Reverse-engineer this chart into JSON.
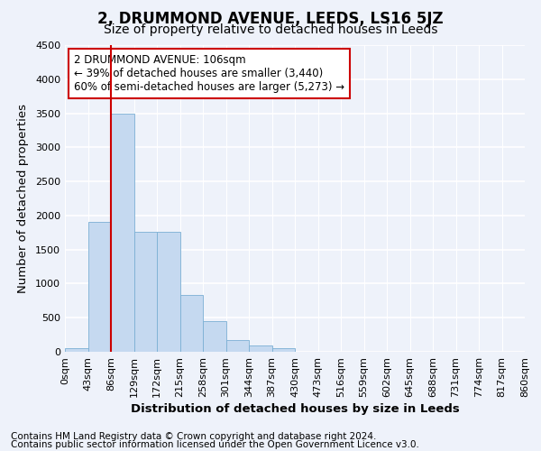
{
  "title": "2, DRUMMOND AVENUE, LEEDS, LS16 5JZ",
  "subtitle": "Size of property relative to detached houses in Leeds",
  "xlabel": "Distribution of detached houses by size in Leeds",
  "ylabel": "Number of detached properties",
  "bar_color": "#c5d9f0",
  "bar_edge_color": "#7bafd4",
  "vline_color": "#cc0000",
  "vline_x": 2,
  "annotation_text": "2 DRUMMOND AVENUE: 106sqm\n← 39% of detached houses are smaller (3,440)\n60% of semi-detached houses are larger (5,273) →",
  "annotation_box_color": "#cc0000",
  "footnote1": "Contains HM Land Registry data © Crown copyright and database right 2024.",
  "footnote2": "Contains public sector information licensed under the Open Government Licence v3.0.",
  "bar_values": [
    50,
    1900,
    3500,
    1760,
    1760,
    840,
    450,
    170,
    90,
    55,
    0,
    0,
    0,
    0,
    0,
    0,
    0,
    0,
    0,
    0
  ],
  "tick_labels": [
    "0sqm",
    "43sqm",
    "86sqm",
    "129sqm",
    "172sqm",
    "215sqm",
    "258sqm",
    "301sqm",
    "344sqm",
    "387sqm",
    "430sqm",
    "473sqm",
    "516sqm",
    "559sqm",
    "602sqm",
    "645sqm",
    "688sqm",
    "731sqm",
    "774sqm",
    "817sqm",
    "860sqm"
  ],
  "ylim": [
    0,
    4500
  ],
  "yticks": [
    0,
    500,
    1000,
    1500,
    2000,
    2500,
    3000,
    3500,
    4000,
    4500
  ],
  "background_color": "#eef2fa",
  "plot_background": "#eef2fa",
  "grid_color": "#ffffff",
  "title_fontsize": 12,
  "subtitle_fontsize": 10,
  "axis_label_fontsize": 9.5,
  "tick_fontsize": 8,
  "annotation_fontsize": 8.5,
  "footnote_fontsize": 7.5
}
